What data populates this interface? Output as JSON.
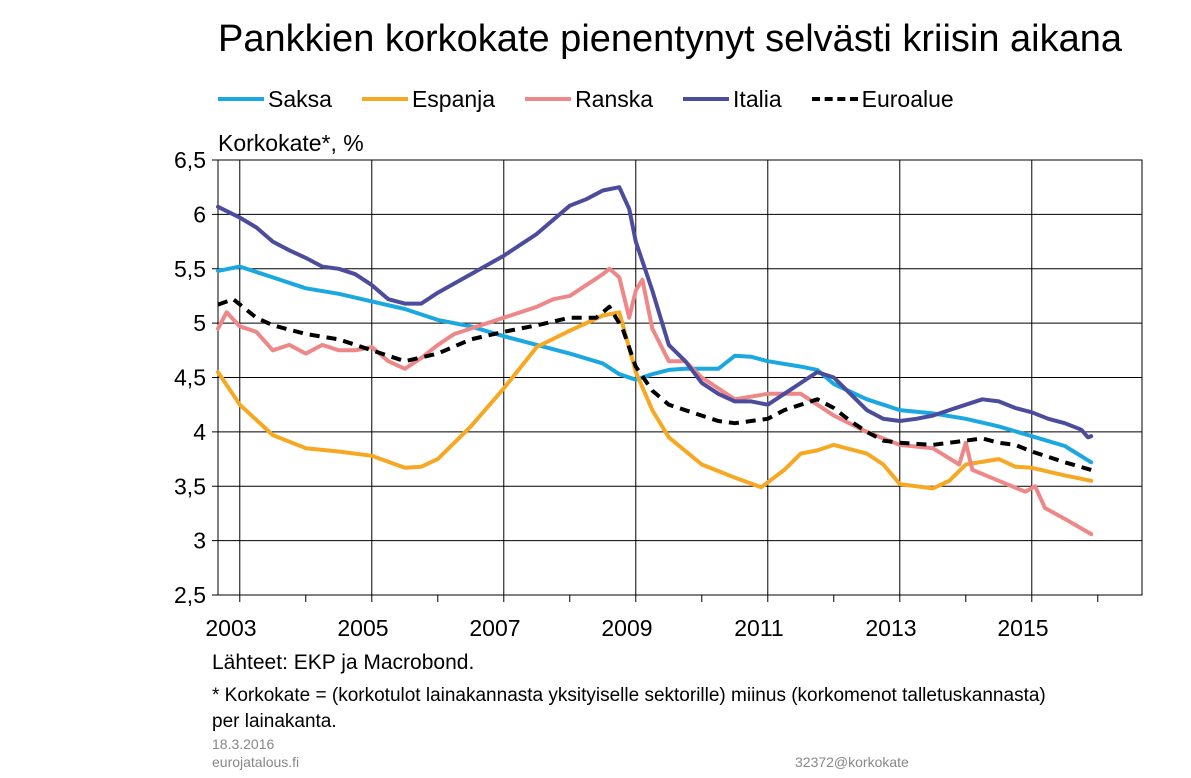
{
  "chart_data": {
    "type": "line",
    "title": "Pankkien korkokate pienentynyt selvästi kriisin aikana",
    "ylabel": "Korkokate*, %",
    "ylim": [
      2.5,
      6.5
    ],
    "yticks": [
      "6,5",
      "6",
      "5,5",
      "5",
      "4,5",
      "4",
      "3,5",
      "3",
      "2,5"
    ],
    "xlim": [
      2002.67,
      2016.67
    ],
    "xticks": [
      "2003",
      "2005",
      "2007",
      "2009",
      "2011",
      "2013",
      "2015"
    ],
    "grid": true,
    "legend_position": "top",
    "series": [
      {
        "name": "Saksa",
        "color": "#1BA7E0",
        "dashed": false,
        "x": [
          2002.67,
          2003.0,
          2003.5,
          2004.0,
          2004.5,
          2005.0,
          2005.5,
          2006.0,
          2006.5,
          2007.0,
          2007.5,
          2008.0,
          2008.5,
          2008.75,
          2009.0,
          2009.25,
          2009.5,
          2009.75,
          2010.0,
          2010.25,
          2010.5,
          2010.75,
          2011.0,
          2011.5,
          2011.75,
          2012.0,
          2012.5,
          2013.0,
          2013.5,
          2014.0,
          2014.5,
          2015.0,
          2015.5,
          2015.9
        ],
        "y": [
          5.48,
          5.52,
          5.42,
          5.32,
          5.27,
          5.2,
          5.13,
          5.03,
          4.97,
          4.88,
          4.8,
          4.72,
          4.63,
          4.53,
          4.48,
          4.53,
          4.57,
          4.58,
          4.58,
          4.58,
          4.7,
          4.69,
          4.65,
          4.6,
          4.57,
          4.44,
          4.3,
          4.2,
          4.17,
          4.12,
          4.05,
          3.96,
          3.87,
          3.72
        ]
      },
      {
        "name": "Espanja",
        "color": "#F7A823",
        "dashed": false,
        "x": [
          2002.67,
          2003.0,
          2003.5,
          2004.0,
          2004.5,
          2005.0,
          2005.5,
          2005.75,
          2006.0,
          2006.5,
          2007.0,
          2007.5,
          2008.0,
          2008.5,
          2008.75,
          2009.0,
          2009.25,
          2009.5,
          2010.0,
          2010.5,
          2010.9,
          2011.25,
          2011.5,
          2011.75,
          2012.0,
          2012.5,
          2012.75,
          2013.0,
          2013.5,
          2013.75,
          2014.0,
          2014.5,
          2014.75,
          2015.0,
          2015.5,
          2015.9
        ],
        "y": [
          4.55,
          4.25,
          3.97,
          3.85,
          3.82,
          3.78,
          3.67,
          3.68,
          3.75,
          4.05,
          4.4,
          4.78,
          4.93,
          5.07,
          5.1,
          4.55,
          4.2,
          3.95,
          3.7,
          3.58,
          3.49,
          3.65,
          3.8,
          3.83,
          3.88,
          3.8,
          3.7,
          3.52,
          3.48,
          3.55,
          3.7,
          3.75,
          3.68,
          3.67,
          3.6,
          3.55
        ]
      },
      {
        "name": "Ranska",
        "color": "#EE8888",
        "dashed": false,
        "x": [
          2002.67,
          2002.8,
          2003.0,
          2003.25,
          2003.5,
          2003.75,
          2004.0,
          2004.25,
          2004.5,
          2004.75,
          2005.0,
          2005.25,
          2005.5,
          2005.75,
          2006.0,
          2006.25,
          2006.5,
          2006.75,
          2007.0,
          2007.25,
          2007.5,
          2007.75,
          2008.0,
          2008.25,
          2008.5,
          2008.6,
          2008.75,
          2008.9,
          2009.0,
          2009.1,
          2009.25,
          2009.5,
          2009.75,
          2010.0,
          2010.5,
          2011.0,
          2011.5,
          2012.0,
          2012.5,
          2013.0,
          2013.5,
          2013.9,
          2014.0,
          2014.1,
          2014.5,
          2014.9,
          2015.05,
          2015.2,
          2015.5,
          2015.9
        ],
        "y": [
          4.95,
          5.1,
          4.97,
          4.92,
          4.75,
          4.8,
          4.72,
          4.8,
          4.75,
          4.75,
          4.78,
          4.65,
          4.58,
          4.68,
          4.8,
          4.9,
          4.95,
          5.0,
          5.05,
          5.1,
          5.15,
          5.22,
          5.25,
          5.35,
          5.45,
          5.5,
          5.42,
          5.05,
          5.3,
          5.4,
          4.95,
          4.65,
          4.65,
          4.5,
          4.3,
          4.35,
          4.35,
          4.15,
          4.0,
          3.88,
          3.85,
          3.7,
          3.9,
          3.65,
          3.55,
          3.45,
          3.5,
          3.3,
          3.2,
          3.06
        ]
      },
      {
        "name": "Italia",
        "color": "#4B4C9B",
        "dashed": false,
        "x": [
          2002.67,
          2003.0,
          2003.25,
          2003.5,
          2003.75,
          2004.0,
          2004.25,
          2004.5,
          2004.75,
          2005.0,
          2005.25,
          2005.5,
          2005.75,
          2006.0,
          2006.5,
          2007.0,
          2007.5,
          2008.0,
          2008.25,
          2008.5,
          2008.75,
          2008.9,
          2009.0,
          2009.25,
          2009.5,
          2009.75,
          2010.0,
          2010.25,
          2010.5,
          2010.75,
          2011.0,
          2011.5,
          2011.75,
          2012.0,
          2012.25,
          2012.5,
          2012.75,
          2013.0,
          2013.25,
          2013.5,
          2013.75,
          2014.0,
          2014.25,
          2014.5,
          2014.75,
          2015.0,
          2015.25,
          2015.5,
          2015.75,
          2015.85,
          2015.9
        ],
        "y": [
          6.07,
          5.97,
          5.88,
          5.75,
          5.67,
          5.6,
          5.52,
          5.5,
          5.45,
          5.35,
          5.22,
          5.18,
          5.18,
          5.28,
          5.45,
          5.62,
          5.82,
          6.08,
          6.14,
          6.22,
          6.25,
          6.05,
          5.75,
          5.3,
          4.8,
          4.65,
          4.45,
          4.35,
          4.28,
          4.28,
          4.25,
          4.45,
          4.55,
          4.5,
          4.35,
          4.2,
          4.12,
          4.1,
          4.12,
          4.15,
          4.2,
          4.25,
          4.3,
          4.28,
          4.22,
          4.18,
          4.12,
          4.08,
          4.02,
          3.95,
          3.96
        ]
      },
      {
        "name": "Euroalue",
        "color": "#000000",
        "dashed": true,
        "x": [
          2002.67,
          2002.9,
          2003.25,
          2003.5,
          2004.0,
          2004.5,
          2005.0,
          2005.5,
          2006.0,
          2006.5,
          2007.0,
          2007.5,
          2008.0,
          2008.4,
          2008.6,
          2008.8,
          2009.0,
          2009.25,
          2009.5,
          2010.0,
          2010.25,
          2010.5,
          2011.0,
          2011.25,
          2011.5,
          2011.75,
          2012.0,
          2012.25,
          2012.5,
          2012.75,
          2013.0,
          2013.5,
          2014.0,
          2014.25,
          2014.5,
          2014.75,
          2015.0,
          2015.5,
          2015.9
        ],
        "y": [
          5.17,
          5.22,
          5.05,
          4.98,
          4.9,
          4.85,
          4.75,
          4.65,
          4.72,
          4.85,
          4.92,
          4.98,
          5.05,
          5.05,
          5.15,
          4.95,
          4.6,
          4.38,
          4.25,
          4.15,
          4.1,
          4.08,
          4.12,
          4.2,
          4.25,
          4.3,
          4.22,
          4.1,
          4.0,
          3.92,
          3.9,
          3.88,
          3.92,
          3.94,
          3.9,
          3.88,
          3.82,
          3.72,
          3.65
        ]
      }
    ]
  },
  "sources": "Lähteet: EKP ja Macrobond.",
  "footnote": "* Korkokate = (korkotulot lainakannasta yksityiselle sektorille) miinus (korkomenot talletuskannasta) per lainakanta.",
  "date": "18.3.2016",
  "site": "eurojatalous.fi",
  "chart_id": "32372@korkokate"
}
